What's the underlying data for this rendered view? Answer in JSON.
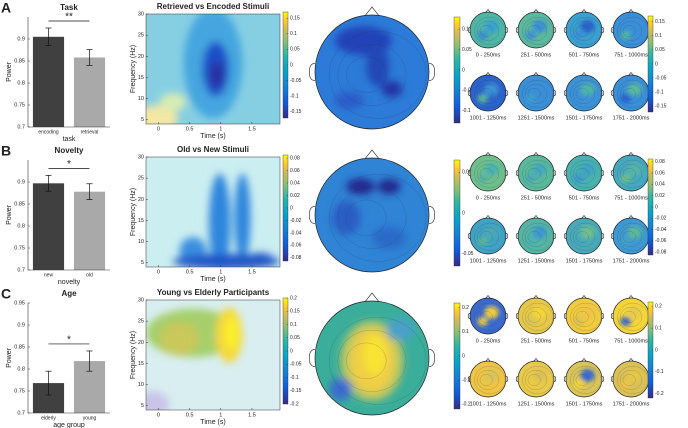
{
  "chart_data": [
    {
      "type": "bar",
      "panel": "A",
      "title": "Task",
      "ylabel": "Power",
      "xlabel": "task",
      "categories": [
        "encoding",
        "retrieval"
      ],
      "values": [
        0.905,
        0.858
      ],
      "errors": [
        0.02,
        0.018
      ],
      "colors": [
        "#404040",
        "#a9a9a9"
      ],
      "ylim": [
        0.7,
        0.95
      ],
      "yticks": [
        0.7,
        0.75,
        0.8,
        0.85,
        0.9
      ],
      "annotation": "**"
    },
    {
      "type": "heatmap",
      "title": "Retrieved vs Encoded Stimuli",
      "xlabel": "Time (s)",
      "ylabel": "Frequency (Hz)",
      "xlim": [
        -0.2,
        1.95
      ],
      "xticks": [
        0,
        0.5,
        1,
        1.5
      ],
      "ylim": [
        4,
        30
      ],
      "yticks": [
        5,
        10,
        15,
        20,
        25,
        30
      ],
      "colorbar": {
        "clim": [
          -0.17,
          0.17
        ],
        "ticks": [
          0.15,
          0.1,
          0.05,
          0,
          -0.05,
          -0.1,
          -0.15
        ]
      }
    },
    {
      "type": "topoplot",
      "colorbar": {
        "clim": [
          -0.13,
          0.13
        ],
        "ticks": [
          0.1,
          0.05,
          0,
          -0.05,
          -0.1
        ]
      }
    },
    {
      "type": "topoplot-grid",
      "labels": [
        "0 - 250ms",
        "251 - 500ms",
        "501 - 750ms",
        "751 - 1000ms",
        "1001 - 1250ms",
        "1251 - 1500ms",
        "1501 - 1750ms",
        "1751 - 2000ms"
      ],
      "colorbar": {
        "clim": [
          -0.17,
          0.17
        ],
        "ticks": [
          0.15,
          0.1,
          0.05,
          0,
          -0.05,
          -0.1,
          -0.15
        ]
      }
    },
    {
      "type": "bar",
      "panel": "B",
      "title": "Novelty",
      "ylabel": "Power",
      "xlabel": "novelty",
      "categories": [
        "new",
        "old"
      ],
      "values": [
        0.897,
        0.878
      ],
      "errors": [
        0.018,
        0.018
      ],
      "colors": [
        "#404040",
        "#a9a9a9"
      ],
      "ylim": [
        0.7,
        0.95
      ],
      "yticks": [
        0.7,
        0.75,
        0.8,
        0.85,
        0.9
      ],
      "annotation": "*"
    },
    {
      "type": "heatmap",
      "title": "Old vs New Stimuli",
      "xlabel": "Time (s)",
      "ylabel": "Frequency (Hz)",
      "xlim": [
        -0.2,
        1.95
      ],
      "xticks": [
        0,
        0.5,
        1,
        1.5
      ],
      "ylim": [
        4,
        30
      ],
      "yticks": [
        5,
        10,
        15,
        20,
        25,
        30
      ],
      "colorbar": {
        "clim": [
          -0.085,
          0.085
        ],
        "ticks": [
          0.08,
          0.06,
          0.04,
          0.02,
          0,
          -0.02,
          -0.04,
          -0.06,
          -0.08
        ]
      }
    },
    {
      "type": "topoplot",
      "colorbar": {
        "clim": [
          -0.065,
          0.065
        ],
        "ticks": [
          0.05,
          0,
          -0.05
        ]
      }
    },
    {
      "type": "topoplot-grid",
      "labels": [
        "0 - 250ms",
        "251 - 500ms",
        "501 - 750ms",
        "751 - 1000ms",
        "1001 - 1250ms",
        "1251 - 1500ms",
        "1501 - 1750ms",
        "1751 - 2000ms"
      ],
      "colorbar": {
        "clim": [
          -0.085,
          0.085
        ],
        "ticks": [
          0.08,
          0.06,
          0.04,
          0.02,
          0,
          -0.02,
          -0.04,
          -0.06,
          -0.08
        ]
      }
    },
    {
      "type": "bar",
      "panel": "C",
      "title": "Age",
      "ylabel": "Power",
      "xlabel": "age group",
      "categories": [
        "elderly",
        "young"
      ],
      "values": [
        0.768,
        0.818
      ],
      "errors": [
        0.027,
        0.023
      ],
      "colors": [
        "#404040",
        "#a9a9a9"
      ],
      "ylim": [
        0.7,
        0.95
      ],
      "yticks": [
        0.7,
        0.75,
        0.8,
        0.85,
        0.9,
        0.95
      ],
      "annotation": "*"
    },
    {
      "type": "heatmap",
      "title": "Young vs Elderly Participants",
      "xlabel": "Time (s)",
      "ylabel": "Frequency (Hz)",
      "xlim": [
        -0.2,
        1.95
      ],
      "xticks": [
        0,
        0.5,
        1,
        1.5
      ],
      "ylim": [
        4,
        30
      ],
      "yticks": [
        5,
        10,
        15,
        20,
        25,
        30
      ],
      "colorbar": {
        "clim": [
          -0.2,
          0.2
        ],
        "ticks": [
          0.2,
          0.15,
          0.1,
          0.05,
          0,
          -0.05,
          -0.1,
          -0.15,
          -0.2
        ]
      }
    },
    {
      "type": "topoplot",
      "colorbar": {
        "clim": [
          -0.22,
          0.22
        ],
        "ticks": [
          0.2,
          0.1,
          0,
          -0.1,
          -0.2
        ]
      }
    },
    {
      "type": "topoplot-grid",
      "labels": [
        "0 - 250ms",
        "251 - 500ms",
        "501 - 750ms",
        "751 - 1000ms",
        "1001 - 1250ms",
        "1251 - 1500ms",
        "1501 - 1750ms",
        "1751 - 2000ms"
      ],
      "colorbar": {
        "clim": [
          -0.22,
          0.22
        ],
        "ticks": [
          0.2,
          0.1,
          0,
          -0.1,
          -0.2
        ]
      }
    }
  ]
}
